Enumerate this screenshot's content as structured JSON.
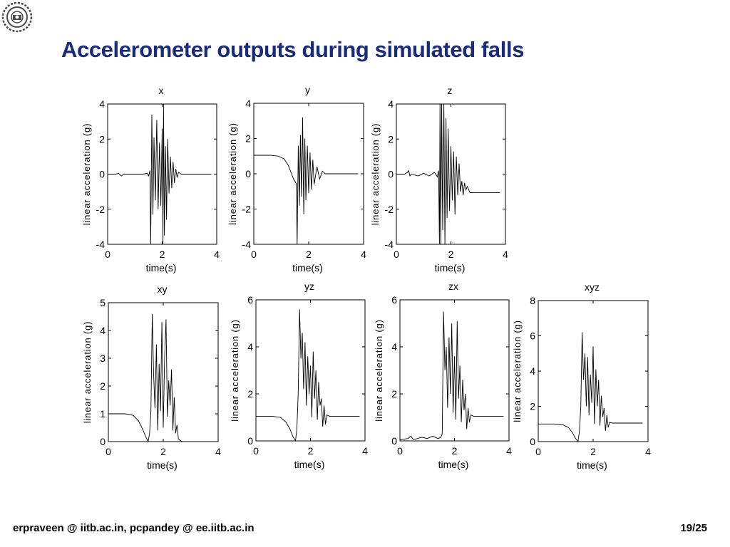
{
  "slide": {
    "title": "Accelerometer outputs during simulated falls",
    "footer_left": "erpraveen @ iitb.ac.in, pcpandey @ ee.iitb.ac.in",
    "footer_right": "19/25"
  },
  "logo": {
    "icon": "iitb-seal-icon"
  },
  "chart_data": [
    {
      "type": "line",
      "title": "x",
      "xlabel": "time(s)",
      "ylabel": "linear acceleration (g)",
      "xlim": [
        0,
        4
      ],
      "ylim": [
        -4,
        4
      ],
      "xticks": [
        0,
        2,
        4
      ],
      "yticks": [
        -4,
        -2,
        0,
        2,
        4
      ],
      "grid": false,
      "series": [
        {
          "values": [
            [
              0,
              0
            ],
            [
              0.3,
              0
            ],
            [
              0.4,
              0.05
            ],
            [
              0.5,
              -0.1
            ],
            [
              0.55,
              -0.05
            ],
            [
              0.6,
              0
            ],
            [
              1.3,
              0
            ],
            [
              1.45,
              0.05
            ],
            [
              1.5,
              -0.1
            ],
            [
              1.55,
              0.2
            ],
            [
              1.58,
              -4
            ],
            [
              1.62,
              3.4
            ],
            [
              1.66,
              -2.3
            ],
            [
              1.7,
              2.1
            ],
            [
              1.75,
              -1.5
            ],
            [
              1.8,
              3.1
            ],
            [
              1.85,
              -2
            ],
            [
              1.9,
              1.8
            ],
            [
              1.95,
              -1.8
            ],
            [
              2.0,
              2.6
            ],
            [
              2.03,
              -4
            ],
            [
              2.05,
              4
            ],
            [
              2.08,
              -3.5
            ],
            [
              2.12,
              1.6
            ],
            [
              2.16,
              -2.6
            ],
            [
              2.2,
              2.0
            ],
            [
              2.25,
              -1.1
            ],
            [
              2.3,
              1.0
            ],
            [
              2.35,
              -0.8
            ],
            [
              2.4,
              0.7
            ],
            [
              2.45,
              -0.5
            ],
            [
              2.5,
              0.3
            ],
            [
              2.55,
              -0.2
            ],
            [
              2.6,
              0.1
            ],
            [
              2.7,
              0
            ],
            [
              3.8,
              0
            ]
          ]
        }
      ]
    },
    {
      "type": "line",
      "title": "y",
      "xlabel": "time(s)",
      "ylabel": "linear acceleration (g)",
      "xlim": [
        0,
        4
      ],
      "ylim": [
        -4,
        4
      ],
      "xticks": [
        0,
        2,
        4
      ],
      "yticks": [
        -4,
        -2,
        0,
        2,
        4
      ],
      "grid": false,
      "series": [
        {
          "values": [
            [
              0,
              1.05
            ],
            [
              0.6,
              1.05
            ],
            [
              0.9,
              1.0
            ],
            [
              1.1,
              0.85
            ],
            [
              1.25,
              0.5
            ],
            [
              1.35,
              0.1
            ],
            [
              1.45,
              -0.3
            ],
            [
              1.55,
              -0.55
            ],
            [
              1.58,
              -4
            ],
            [
              1.62,
              1.6
            ],
            [
              1.66,
              -1.8
            ],
            [
              1.7,
              2.2
            ],
            [
              1.74,
              -1.3
            ],
            [
              1.78,
              3.2
            ],
            [
              1.82,
              -2.3
            ],
            [
              1.86,
              2.0
            ],
            [
              1.9,
              -1.5
            ],
            [
              1.95,
              1.6
            ],
            [
              2.0,
              -1.1
            ],
            [
              2.05,
              1.2
            ],
            [
              2.1,
              -0.9
            ],
            [
              2.15,
              0.8
            ],
            [
              2.2,
              -0.6
            ],
            [
              2.3,
              0.4
            ],
            [
              2.4,
              -0.3
            ],
            [
              2.5,
              0.15
            ],
            [
              2.6,
              0
            ],
            [
              3.8,
              0
            ]
          ]
        }
      ]
    },
    {
      "type": "line",
      "title": "z",
      "xlabel": "time(s)",
      "ylabel": "linear acceleration (g)",
      "xlim": [
        0,
        4
      ],
      "ylim": [
        -4,
        4
      ],
      "xticks": [
        0,
        2,
        4
      ],
      "yticks": [
        -4,
        -2,
        0,
        2,
        4
      ],
      "grid": false,
      "series": [
        {
          "values": [
            [
              0,
              0
            ],
            [
              0.3,
              0
            ],
            [
              0.4,
              0.1
            ],
            [
              0.45,
              0.2
            ],
            [
              0.5,
              -0.1
            ],
            [
              0.55,
              0
            ],
            [
              0.8,
              -0.1
            ],
            [
              1.0,
              0.05
            ],
            [
              1.2,
              -0.1
            ],
            [
              1.4,
              0.1
            ],
            [
              1.5,
              -0.15
            ],
            [
              1.55,
              0.2
            ],
            [
              1.58,
              -4
            ],
            [
              1.6,
              4
            ],
            [
              1.63,
              -4
            ],
            [
              1.66,
              4
            ],
            [
              1.7,
              -3.2
            ],
            [
              1.74,
              4
            ],
            [
              1.78,
              -4
            ],
            [
              1.82,
              3.2
            ],
            [
              1.86,
              -2.5
            ],
            [
              1.9,
              2.6
            ],
            [
              1.95,
              -2.1
            ],
            [
              2.0,
              1.6
            ],
            [
              2.05,
              -1.5
            ],
            [
              2.1,
              1.3
            ],
            [
              2.15,
              -2.3
            ],
            [
              2.2,
              1.0
            ],
            [
              2.25,
              -1.2
            ],
            [
              2.3,
              0.6
            ],
            [
              2.35,
              -1.0
            ],
            [
              2.4,
              -0.4
            ],
            [
              2.45,
              -1.2
            ],
            [
              2.5,
              -0.5
            ],
            [
              2.55,
              -0.9
            ],
            [
              2.6,
              -0.7
            ],
            [
              2.7,
              -1.05
            ],
            [
              3.8,
              -1.05
            ]
          ]
        }
      ]
    },
    {
      "type": "line",
      "title": "xy",
      "xlabel": "time(s)",
      "ylabel": "linear acceleration (g)",
      "xlim": [
        0,
        4
      ],
      "ylim": [
        0,
        5
      ],
      "xticks": [
        0,
        2,
        4
      ],
      "yticks": [
        0,
        1,
        2,
        3,
        4,
        5
      ],
      "grid": false,
      "series": [
        {
          "values": [
            [
              0,
              1.0
            ],
            [
              0.6,
              1.0
            ],
            [
              0.9,
              0.95
            ],
            [
              1.1,
              0.75
            ],
            [
              1.25,
              0.45
            ],
            [
              1.35,
              0.2
            ],
            [
              1.45,
              0.0
            ],
            [
              1.5,
              0.3
            ],
            [
              1.55,
              1.1
            ],
            [
              1.6,
              4.6
            ],
            [
              1.65,
              2.4
            ],
            [
              1.7,
              1.2
            ],
            [
              1.75,
              3.5
            ],
            [
              1.8,
              0.4
            ],
            [
              1.85,
              2.8
            ],
            [
              1.9,
              1.1
            ],
            [
              1.95,
              4.3
            ],
            [
              2.0,
              0.5
            ],
            [
              2.05,
              3.0
            ],
            [
              2.1,
              4.4
            ],
            [
              2.15,
              0.9
            ],
            [
              2.2,
              2.2
            ],
            [
              2.25,
              1.3
            ],
            [
              2.3,
              2.6
            ],
            [
              2.35,
              0.4
            ],
            [
              2.4,
              1.6
            ],
            [
              2.45,
              0.3
            ],
            [
              2.5,
              0.6
            ],
            [
              2.55,
              0.1
            ],
            [
              2.6,
              0.05
            ],
            [
              2.7,
              0
            ],
            [
              3.8,
              0
            ]
          ]
        }
      ]
    },
    {
      "type": "line",
      "title": "yz",
      "xlabel": "time(s)",
      "ylabel": "linear acceleration (g)",
      "xlim": [
        0,
        4
      ],
      "ylim": [
        0,
        6
      ],
      "xticks": [
        0,
        2,
        4
      ],
      "yticks": [
        0,
        2,
        4,
        6
      ],
      "grid": false,
      "series": [
        {
          "values": [
            [
              0,
              1.05
            ],
            [
              0.6,
              1.05
            ],
            [
              0.9,
              1.0
            ],
            [
              1.1,
              0.8
            ],
            [
              1.25,
              0.5
            ],
            [
              1.35,
              0.2
            ],
            [
              1.45,
              0.0
            ],
            [
              1.5,
              0.5
            ],
            [
              1.55,
              2.0
            ],
            [
              1.6,
              5.6
            ],
            [
              1.65,
              3.5
            ],
            [
              1.7,
              4.6
            ],
            [
              1.75,
              2.2
            ],
            [
              1.8,
              4.2
            ],
            [
              1.85,
              1.5
            ],
            [
              1.9,
              3.6
            ],
            [
              1.95,
              2.0
            ],
            [
              2.0,
              3.2
            ],
            [
              2.05,
              1.0
            ],
            [
              2.1,
              3.8
            ],
            [
              2.15,
              1.8
            ],
            [
              2.2,
              3.0
            ],
            [
              2.25,
              0.9
            ],
            [
              2.3,
              2.5
            ],
            [
              2.35,
              1.5
            ],
            [
              2.4,
              1.8
            ],
            [
              2.45,
              0.6
            ],
            [
              2.5,
              1.5
            ],
            [
              2.55,
              0.7
            ],
            [
              2.6,
              1.1
            ],
            [
              2.7,
              1.05
            ],
            [
              3.8,
              1.05
            ]
          ]
        }
      ]
    },
    {
      "type": "line",
      "title": "zx",
      "xlabel": "time(s)",
      "ylabel": "linear acceleration (g)",
      "xlim": [
        0,
        4
      ],
      "ylim": [
        0,
        6
      ],
      "xticks": [
        0,
        2,
        4
      ],
      "yticks": [
        0,
        2,
        4,
        6
      ],
      "grid": false,
      "series": [
        {
          "values": [
            [
              0,
              0.05
            ],
            [
              0.3,
              0.1
            ],
            [
              0.4,
              0.2
            ],
            [
              0.5,
              0.05
            ],
            [
              0.8,
              0.15
            ],
            [
              1.0,
              0.1
            ],
            [
              1.2,
              0.2
            ],
            [
              1.4,
              0.1
            ],
            [
              1.5,
              0.15
            ],
            [
              1.55,
              0.3
            ],
            [
              1.6,
              5.5
            ],
            [
              1.65,
              3.0
            ],
            [
              1.7,
              4.0
            ],
            [
              1.75,
              1.4
            ],
            [
              1.8,
              4.4
            ],
            [
              1.85,
              2.0
            ],
            [
              1.9,
              5.0
            ],
            [
              1.95,
              1.2
            ],
            [
              2.0,
              3.6
            ],
            [
              2.05,
              0.9
            ],
            [
              2.1,
              5.1
            ],
            [
              2.15,
              1.8
            ],
            [
              2.2,
              3.2
            ],
            [
              2.25,
              0.8
            ],
            [
              2.3,
              2.6
            ],
            [
              2.35,
              1.3
            ],
            [
              2.4,
              2.0
            ],
            [
              2.45,
              0.5
            ],
            [
              2.5,
              1.4
            ],
            [
              2.55,
              0.8
            ],
            [
              2.6,
              1.1
            ],
            [
              2.7,
              1.05
            ],
            [
              3.8,
              1.05
            ]
          ]
        }
      ]
    },
    {
      "type": "line",
      "title": "xyz",
      "xlabel": "time(s)",
      "ylabel": "linear acceleration (g)",
      "xlim": [
        0,
        4
      ],
      "ylim": [
        0,
        8
      ],
      "xticks": [
        0,
        2,
        4
      ],
      "yticks": [
        0,
        2,
        4,
        6,
        8
      ],
      "grid": false,
      "series": [
        {
          "values": [
            [
              0,
              1.0
            ],
            [
              0.6,
              1.0
            ],
            [
              0.9,
              0.95
            ],
            [
              1.1,
              0.8
            ],
            [
              1.25,
              0.5
            ],
            [
              1.35,
              0.2
            ],
            [
              1.45,
              0.0
            ],
            [
              1.5,
              0.6
            ],
            [
              1.55,
              2.0
            ],
            [
              1.6,
              6.2
            ],
            [
              1.65,
              3.5
            ],
            [
              1.7,
              5.0
            ],
            [
              1.75,
              2.0
            ],
            [
              1.8,
              4.8
            ],
            [
              1.85,
              1.5
            ],
            [
              1.9,
              3.8
            ],
            [
              1.95,
              2.2
            ],
            [
              2.0,
              5.4
            ],
            [
              2.05,
              1.0
            ],
            [
              2.1,
              4.1
            ],
            [
              2.15,
              2.0
            ],
            [
              2.2,
              3.5
            ],
            [
              2.25,
              0.9
            ],
            [
              2.3,
              2.6
            ],
            [
              2.35,
              1.4
            ],
            [
              2.4,
              1.9
            ],
            [
              2.45,
              0.6
            ],
            [
              2.5,
              1.5
            ],
            [
              2.55,
              0.8
            ],
            [
              2.6,
              1.1
            ],
            [
              2.7,
              1.05
            ],
            [
              3.8,
              1.05
            ]
          ]
        }
      ]
    }
  ]
}
